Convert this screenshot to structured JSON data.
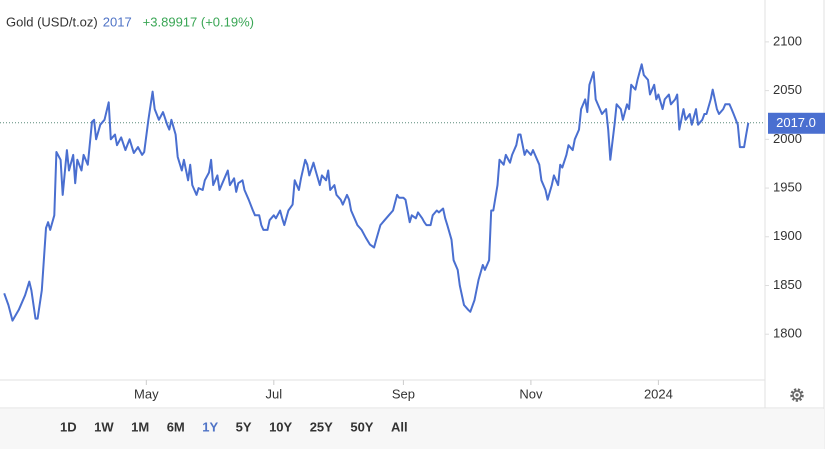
{
  "chart_data": {
    "type": "line",
    "title": "Gold (USD/t.oz)",
    "price": "2017",
    "change": "+3.89917 (+0.19%)",
    "last_label": "2017.0",
    "last_value": 2017,
    "color": "#4a6fd0",
    "ylim": [
      1753,
      2143
    ],
    "yticks": [
      1800,
      1850,
      1900,
      1950,
      2000,
      2050,
      2100
    ],
    "xlim": [
      -2,
      364
    ],
    "xticks": [
      {
        "value": 68,
        "label": "May"
      },
      {
        "value": 129,
        "label": "Jul"
      },
      {
        "value": 191,
        "label": "Sep"
      },
      {
        "value": 252,
        "label": "Nov"
      },
      {
        "value": 313,
        "label": "2024"
      }
    ],
    "grid": false,
    "ranges": [
      "1D",
      "1W",
      "1M",
      "6M",
      "1Y",
      "5Y",
      "10Y",
      "25Y",
      "50Y",
      "All"
    ],
    "active_range": "1Y",
    "x": [
      0,
      2,
      4,
      7,
      10,
      12,
      13,
      15,
      16,
      18,
      20,
      21,
      22,
      24,
      25,
      27,
      28,
      30,
      31,
      33,
      34,
      35,
      37,
      38,
      40,
      42,
      43,
      44,
      46,
      48,
      50,
      51,
      53,
      54,
      56,
      58,
      60,
      62,
      64,
      66,
      67,
      69,
      71,
      72,
      74,
      76,
      78,
      79,
      80,
      82,
      83,
      85,
      86,
      88,
      89,
      90,
      92,
      93,
      95,
      96,
      98,
      99,
      100,
      102,
      103,
      105,
      107,
      108,
      110,
      111,
      112,
      114,
      115,
      117,
      119,
      120,
      122,
      123,
      124,
      126,
      127,
      129,
      130,
      132,
      133,
      134,
      136,
      138,
      139,
      141,
      142,
      144,
      145,
      146,
      148,
      149,
      151,
      152,
      154,
      155,
      156,
      158,
      159,
      161,
      162,
      164,
      165,
      166,
      168,
      169,
      171,
      173,
      175,
      177,
      178,
      180,
      182,
      184,
      186,
      188,
      189,
      191,
      192,
      194,
      195,
      197,
      198,
      200,
      201,
      202,
      204,
      205,
      207,
      208,
      210,
      211,
      212,
      214,
      215,
      217,
      218,
      220,
      222,
      223,
      225,
      227,
      229,
      230,
      232,
      233,
      234,
      236,
      237,
      239,
      240,
      242,
      243,
      245,
      246,
      247,
      249,
      250,
      252,
      253,
      255,
      256,
      257,
      259,
      260,
      262,
      263,
      265,
      266,
      267,
      269,
      270,
      272,
      273,
      275,
      276,
      278,
      279,
      280,
      282,
      283,
      285,
      286,
      288,
      289,
      290,
      292,
      293,
      295,
      296,
      298,
      299,
      300,
      302,
      303,
      305,
      306,
      308,
      309,
      311,
      312,
      313,
      315,
      316,
      318,
      319,
      321,
      322,
      323,
      325,
      326,
      328,
      329,
      331,
      332,
      334,
      335,
      336,
      338,
      339,
      341,
      342,
      344,
      345,
      347,
      348,
      349,
      351,
      352,
      354,
      355,
      356
    ],
    "values": [
      1842,
      1830,
      1814,
      1825,
      1840,
      1854,
      1845,
      1816,
      1816,
      1845,
      1909,
      1915,
      1907,
      1922,
      1987,
      1979,
      1943,
      1989,
      1968,
      1984,
      1955,
      1979,
      1968,
      1984,
      1974,
      2018,
      2020,
      2000,
      2015,
      2020,
      2038,
      2000,
      2005,
      1994,
      2002,
      1989,
      2000,
      1986,
      1992,
      1984,
      1987,
      2020,
      2049,
      2031,
      2020,
      2028,
      2015,
      2010,
      2020,
      2005,
      1982,
      1968,
      1979,
      1958,
      1974,
      1953,
      1943,
      1950,
      1948,
      1958,
      1966,
      1979,
      1953,
      1963,
      1948,
      1958,
      1968,
      1953,
      1960,
      1946,
      1955,
      1958,
      1948,
      1938,
      1927,
      1922,
      1922,
      1912,
      1907,
      1907,
      1917,
      1922,
      1919,
      1927,
      1919,
      1912,
      1927,
      1933,
      1958,
      1948,
      1960,
      1979,
      1974,
      1963,
      1976,
      1968,
      1953,
      1963,
      1958,
      1968,
      1948,
      1953,
      1943,
      1938,
      1933,
      1943,
      1938,
      1927,
      1917,
      1912,
      1907,
      1899,
      1892,
      1889,
      1897,
      1912,
      1917,
      1922,
      1927,
      1943,
      1940,
      1940,
      1938,
      1915,
      1922,
      1919,
      1925,
      1919,
      1915,
      1912,
      1912,
      1922,
      1927,
      1925,
      1929,
      1919,
      1912,
      1897,
      1876,
      1866,
      1850,
      1830,
      1825,
      1823,
      1835,
      1856,
      1871,
      1866,
      1876,
      1927,
      1927,
      1953,
      1979,
      1974,
      1984,
      1976,
      1984,
      1994,
      2005,
      2005,
      1984,
      1989,
      1984,
      1989,
      1979,
      1974,
      1958,
      1948,
      1938,
      1953,
      1963,
      1953,
      1974,
      1971,
      1984,
      1994,
      1989,
      2000,
      2010,
      2031,
      2041,
      2028,
      2056,
      2069,
      2041,
      2031,
      2026,
      2031,
      2010,
      1979,
      2015,
      2036,
      2031,
      2020,
      2036,
      2031,
      2056,
      2051,
      2061,
      2077,
      2066,
      2061,
      2046,
      2056,
      2041,
      2046,
      2031,
      2041,
      2046,
      2036,
      2041,
      2046,
      2010,
      2031,
      2020,
      2026,
      2015,
      2031,
      2015,
      2020,
      2026,
      2026,
      2041,
      2051,
      2031,
      2026,
      2031,
      2036,
      2036,
      2031,
      2026,
      2015,
      1992,
      1992,
      2005,
      2017
    ]
  }
}
